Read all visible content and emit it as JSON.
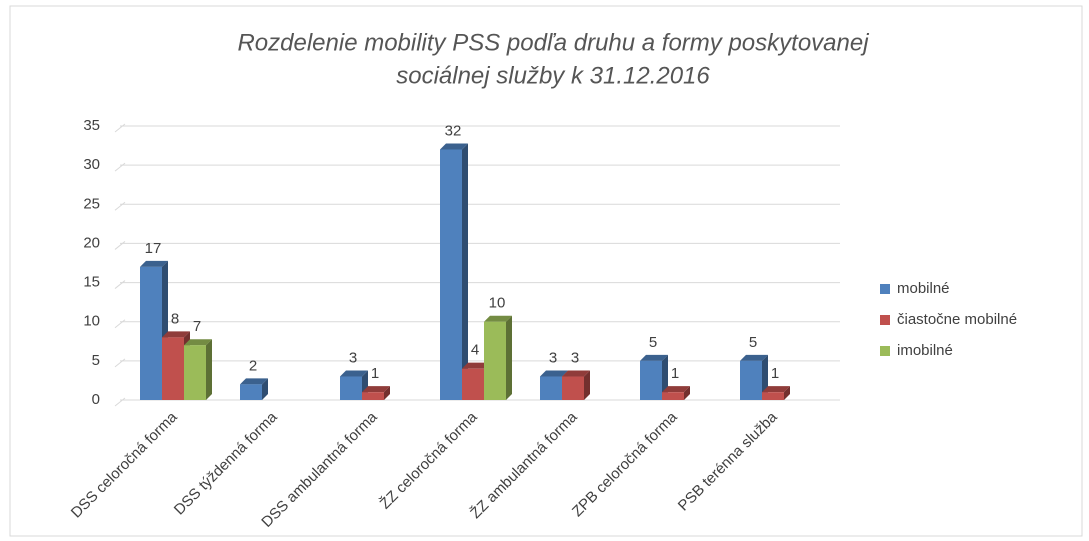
{
  "chart_data": {
    "type": "bar3d",
    "title": [
      "Rozdelenie mobility PSS podľa druhu a formy poskytovanej",
      "sociálnej služby k 31.12.2016"
    ],
    "categories": [
      "DSS celoročná forma",
      "DSS týždenná forma",
      "DSS ambulantná forma",
      "ŽZ celoročná forma",
      "ŽZ  ambulantná forma",
      "ZPB celoročná forma",
      "PSB terénna služba"
    ],
    "series": [
      {
        "name": "mobilné",
        "color": "#4f81bd",
        "values": [
          17,
          2,
          3,
          32,
          3,
          5,
          5
        ]
      },
      {
        "name": "čiastočne mobilné",
        "color": "#c0504d",
        "values": [
          8,
          null,
          1,
          4,
          3,
          1,
          1
        ]
      },
      {
        "name": "imobilné",
        "color": "#9bbb59",
        "values": [
          7,
          null,
          null,
          10,
          null,
          null,
          null
        ]
      }
    ],
    "ylim": [
      0,
      35
    ],
    "yticks": [
      0,
      5,
      10,
      15,
      20,
      25,
      30,
      35
    ],
    "grid": true,
    "legend": "right",
    "data_labels": true
  }
}
